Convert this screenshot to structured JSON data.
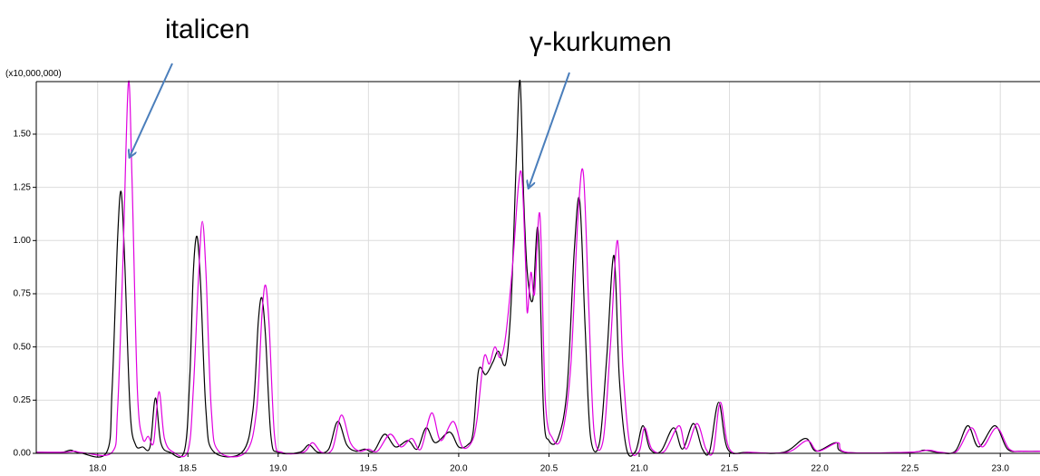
{
  "chart_data": {
    "type": "line",
    "y_multiplier": "(x10,000,000)",
    "annotations": [
      "italicen",
      "γ-kurkumen"
    ],
    "xlim": [
      17.66,
      23.22
    ],
    "ylim": [
      0,
      1.747
    ],
    "xticks": [
      {
        "value": 18.0,
        "label": "18.0"
      },
      {
        "value": 18.5,
        "label": "18.5"
      },
      {
        "value": 19.0,
        "label": "19.0"
      },
      {
        "value": 19.5,
        "label": "19.5"
      },
      {
        "value": 20.0,
        "label": "20.0"
      },
      {
        "value": 20.5,
        "label": "20.5"
      },
      {
        "value": 21.0,
        "label": "21.0"
      },
      {
        "value": 21.5,
        "label": "21.5"
      },
      {
        "value": 22.0,
        "label": "22.0"
      },
      {
        "value": 22.5,
        "label": "22.5"
      },
      {
        "value": 23.0,
        "label": "23.0"
      }
    ],
    "yticks": [
      {
        "value": 0,
        "label": "0.00"
      },
      {
        "value": 0.25,
        "label": "0.25"
      },
      {
        "value": 0.5,
        "label": "0.50"
      },
      {
        "value": 0.75,
        "label": "0.75"
      },
      {
        "value": 1.0,
        "label": "1.00"
      },
      {
        "value": 1.25,
        "label": "1.25"
      },
      {
        "value": 1.5,
        "label": "1.50"
      }
    ],
    "grid": true,
    "series": [
      {
        "color": "#000000",
        "x": [
          17.66,
          17.8,
          17.85,
          17.9,
          18.05,
          18.08,
          18.11,
          18.13,
          18.15,
          18.18,
          18.21,
          18.25,
          18.29,
          18.32,
          18.35,
          18.4,
          18.48,
          18.51,
          18.53,
          18.55,
          18.57,
          18.6,
          18.64,
          18.8,
          18.86,
          18.89,
          18.91,
          18.93,
          18.96,
          19.0,
          19.12,
          19.17,
          19.22,
          19.28,
          19.33,
          19.38,
          19.43,
          19.48,
          19.53,
          19.59,
          19.65,
          19.72,
          19.77,
          19.82,
          19.87,
          19.95,
          20.0,
          20.05,
          20.08,
          20.11,
          20.15,
          20.19,
          20.22,
          20.26,
          20.29,
          20.32,
          20.34,
          20.36,
          20.38,
          20.41,
          20.44,
          20.47,
          20.5,
          20.55,
          20.6,
          20.64,
          20.67,
          20.7,
          20.73,
          20.78,
          20.82,
          20.86,
          20.89,
          20.93,
          20.98,
          21.02,
          21.06,
          21.12,
          21.19,
          21.24,
          21.3,
          21.35,
          21.39,
          21.44,
          21.49,
          21.6,
          21.8,
          21.92,
          21.98,
          22.09,
          22.14,
          22.5,
          22.58,
          22.65,
          22.75,
          22.82,
          22.88,
          22.97,
          23.04,
          23.12,
          23.22
        ],
        "values": [
          0.005,
          0.005,
          0.015,
          0.003,
          0.005,
          0.3,
          1.0,
          1.23,
          0.9,
          0.2,
          0.04,
          0.03,
          0.03,
          0.26,
          0.05,
          0.005,
          0.01,
          0.35,
          0.85,
          1.02,
          0.8,
          0.2,
          0.01,
          0.005,
          0.2,
          0.62,
          0.73,
          0.55,
          0.08,
          0.005,
          0.005,
          0.04,
          0.005,
          0.02,
          0.15,
          0.04,
          0.01,
          0.02,
          0.01,
          0.09,
          0.03,
          0.06,
          0.02,
          0.12,
          0.05,
          0.1,
          0.03,
          0.04,
          0.1,
          0.39,
          0.37,
          0.43,
          0.48,
          0.42,
          0.7,
          1.4,
          1.75,
          1.2,
          0.85,
          0.72,
          1.05,
          0.2,
          0.06,
          0.07,
          0.3,
          0.95,
          1.19,
          0.6,
          0.08,
          0.05,
          0.45,
          0.93,
          0.35,
          0.02,
          0.01,
          0.13,
          0.02,
          0.01,
          0.12,
          0.02,
          0.14,
          0.02,
          0.01,
          0.24,
          0.02,
          0.005,
          0.005,
          0.07,
          0.01,
          0.05,
          0.005,
          0.005,
          0.015,
          0.005,
          0.01,
          0.13,
          0.03,
          0.13,
          0.02,
          0.01,
          0.01
        ]
      },
      {
        "color": "#e000e0",
        "x": [
          17.66,
          17.82,
          17.87,
          17.92,
          18.08,
          18.11,
          18.14,
          18.17,
          18.19,
          18.22,
          18.25,
          18.28,
          18.31,
          18.34,
          18.37,
          18.42,
          18.5,
          18.53,
          18.56,
          18.58,
          18.6,
          18.63,
          18.67,
          18.82,
          18.88,
          18.91,
          18.93,
          18.95,
          18.98,
          19.02,
          19.14,
          19.19,
          19.24,
          19.3,
          19.35,
          19.4,
          19.45,
          19.5,
          19.55,
          19.62,
          19.68,
          19.74,
          19.79,
          19.85,
          19.9,
          19.97,
          20.02,
          20.07,
          20.1,
          20.14,
          20.17,
          20.2,
          20.23,
          20.26,
          20.3,
          20.33,
          20.35,
          20.37,
          20.38,
          20.4,
          20.42,
          20.45,
          20.48,
          20.52,
          20.57,
          20.62,
          20.66,
          20.69,
          20.72,
          20.75,
          20.8,
          20.84,
          20.88,
          20.91,
          20.95,
          21.0,
          21.03,
          21.07,
          21.14,
          21.22,
          21.26,
          21.32,
          21.37,
          21.41,
          21.45,
          21.5,
          21.62,
          21.82,
          21.93,
          21.99,
          22.1,
          22.15,
          22.5,
          22.6,
          22.67,
          22.76,
          22.84,
          22.9,
          22.98,
          23.05,
          23.13,
          23.22
        ],
        "values": [
          0.005,
          0.005,
          0.01,
          0.003,
          0.005,
          0.2,
          0.9,
          1.74,
          1.3,
          0.3,
          0.07,
          0.08,
          0.05,
          0.29,
          0.07,
          0.005,
          0.01,
          0.3,
          0.85,
          1.09,
          0.85,
          0.2,
          0.01,
          0.005,
          0.2,
          0.65,
          0.79,
          0.6,
          0.08,
          0.005,
          0.005,
          0.05,
          0.005,
          0.02,
          0.18,
          0.05,
          0.01,
          0.02,
          0.01,
          0.09,
          0.03,
          0.07,
          0.02,
          0.19,
          0.06,
          0.15,
          0.03,
          0.05,
          0.15,
          0.45,
          0.42,
          0.5,
          0.45,
          0.55,
          0.9,
          1.25,
          1.3,
          0.9,
          0.66,
          0.85,
          0.75,
          1.12,
          0.25,
          0.07,
          0.08,
          0.4,
          1.1,
          1.32,
          0.7,
          0.1,
          0.06,
          0.5,
          1.0,
          0.4,
          0.03,
          0.01,
          0.12,
          0.02,
          0.01,
          0.13,
          0.02,
          0.14,
          0.02,
          0.01,
          0.24,
          0.02,
          0.005,
          0.005,
          0.06,
          0.01,
          0.05,
          0.005,
          0.005,
          0.015,
          0.005,
          0.01,
          0.12,
          0.03,
          0.12,
          0.02,
          0.01,
          0.01
        ]
      }
    ]
  }
}
